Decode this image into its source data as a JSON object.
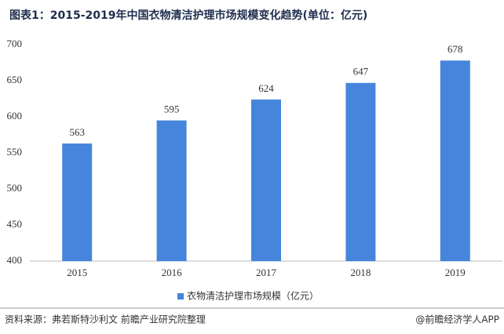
{
  "chart_data": {
    "type": "bar",
    "title": "图表1：2015-2019年中国衣物清洁护理市场规模变化趋势(单位：亿元)",
    "categories": [
      "2015",
      "2016",
      "2017",
      "2018",
      "2019"
    ],
    "series": [
      {
        "name": "衣物清洁护理市场规模（亿元）",
        "color": "#4585dc",
        "values": [
          563,
          595,
          624,
          647,
          678
        ]
      }
    ],
    "ylim": [
      400,
      700
    ],
    "yticks": [
      400,
      450,
      500,
      550,
      600,
      650,
      700
    ],
    "grid": false,
    "legend": "bottom",
    "source": "资料来源：弗若斯特沙利文 前瞻产业研究院整理",
    "credit": "@前瞻经济学人APP"
  }
}
